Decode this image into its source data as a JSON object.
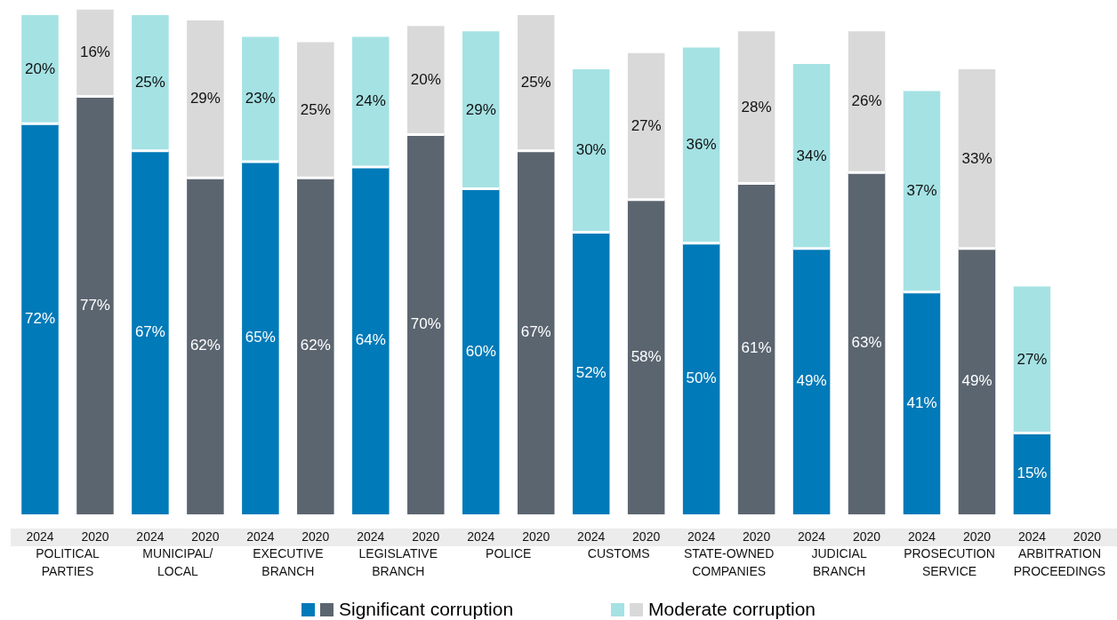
{
  "chart_data": {
    "type": "bar",
    "stacked": true,
    "grid": false,
    "legend": "bottom",
    "categories": [
      "2024",
      "2020",
      "2024",
      "2020",
      "2024",
      "2020",
      "2024",
      "2020",
      "2024",
      "2020",
      "2024",
      "2020",
      "2024",
      "2020",
      "2024",
      "2020",
      "2024",
      "2020",
      "2024",
      "2020"
    ],
    "series": [
      {
        "name": "Significant corruption",
        "colors": [
          "#007ab8",
          "#5b6570",
          "#007ab8",
          "#5b6570",
          "#007ab8",
          "#5b6570",
          "#007ab8",
          "#5b6570",
          "#007ab8",
          "#5b6570",
          "#007ab8",
          "#5b6570",
          "#007ab8",
          "#5b6570",
          "#007ab8",
          "#5b6570",
          "#007ab8",
          "#5b6570",
          "#007ab8",
          "#5b6570"
        ],
        "values": [
          72,
          77,
          67,
          62,
          65,
          62,
          64,
          70,
          60,
          67,
          52,
          58,
          50,
          61,
          49,
          63,
          41,
          49,
          15,
          null
        ],
        "value_labels": [
          "72%",
          "77%",
          "67%",
          "62%",
          "65%",
          "62%",
          "64%",
          "70%",
          "60%",
          "67%",
          "52%",
          "58%",
          "50%",
          "61%",
          "49%",
          "63%",
          "41%",
          "49%",
          "15%",
          null
        ]
      },
      {
        "name": "Moderate corruption",
        "colors": [
          "#a5e2e4",
          "#d9d9d9",
          "#a5e2e4",
          "#d9d9d9",
          "#a5e2e4",
          "#d9d9d9",
          "#a5e2e4",
          "#d9d9d9",
          "#a5e2e4",
          "#d9d9d9",
          "#a5e2e4",
          "#d9d9d9",
          "#a5e2e4",
          "#d9d9d9",
          "#a5e2e4",
          "#d9d9d9",
          "#a5e2e4",
          "#d9d9d9",
          "#a5e2e4",
          "#d9d9d9"
        ],
        "values": [
          20,
          16,
          25,
          29,
          23,
          25,
          24,
          20,
          29,
          25,
          30,
          27,
          36,
          28,
          34,
          26,
          37,
          33,
          27,
          null
        ],
        "value_labels": [
          "20%",
          "16%",
          "25%",
          "29%",
          "23%",
          "25%",
          "24%",
          "20%",
          "29%",
          "25%",
          "30%",
          "27%",
          "36%",
          "28%",
          "34%",
          "26%",
          "37%",
          "33%",
          "27%",
          null
        ]
      }
    ],
    "annotations": [
      "POLITICAL PARTIES",
      "MUNICIPAL/ LOCAL",
      "EXECUTIVE BRANCH",
      "LEGISLATIVE BRANCH",
      "POLICE",
      "CUSTOMS",
      "STATE-OWNED COMPANIES",
      "JUDICIAL BRANCH",
      "PROSECUTION SERVICE",
      "ARBITRATION PROCEEDINGS"
    ]
  }
}
